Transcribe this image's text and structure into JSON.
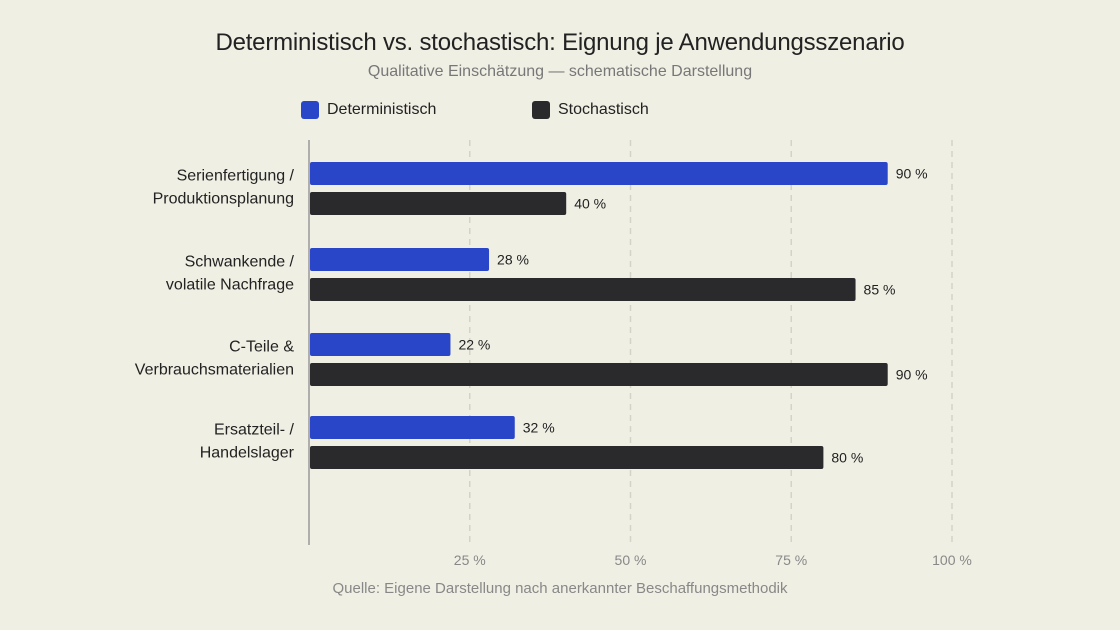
{
  "chart_data": {
    "type": "bar",
    "orientation": "horizontal",
    "title": "Deterministisch vs. stochastisch: Eignung je Anwendungsszenario",
    "subtitle": "Qualitative Einschätzung — schematische Darstellung",
    "source": "Quelle: Eigene Darstellung nach anerkannter Beschaffungsmethodik",
    "categories": [
      [
        "Serienfertigung /",
        "Produktionsplanung"
      ],
      [
        "Schwankende /",
        "volatile Nachfrage"
      ],
      [
        "C-Teile &",
        "Verbrauchsmaterialien"
      ],
      [
        "Ersatzteil- /",
        "Handelslager"
      ]
    ],
    "series": [
      {
        "name": "Deterministisch",
        "color": "#2a46c8",
        "values": [
          90,
          28,
          22,
          32
        ]
      },
      {
        "name": "Stochastisch",
        "color": "#2a2a2c",
        "values": [
          40,
          85,
          90,
          80
        ]
      }
    ],
    "xlim": [
      0,
      100
    ],
    "ticks": [
      {
        "value": 25,
        "label": "25 %"
      },
      {
        "value": 50,
        "label": "50 %"
      },
      {
        "value": 75,
        "label": "75 %"
      },
      {
        "value": 100,
        "label": "100 %"
      }
    ],
    "value_suffix": " %",
    "grid": "vertical dashed",
    "legend_position": "top"
  }
}
